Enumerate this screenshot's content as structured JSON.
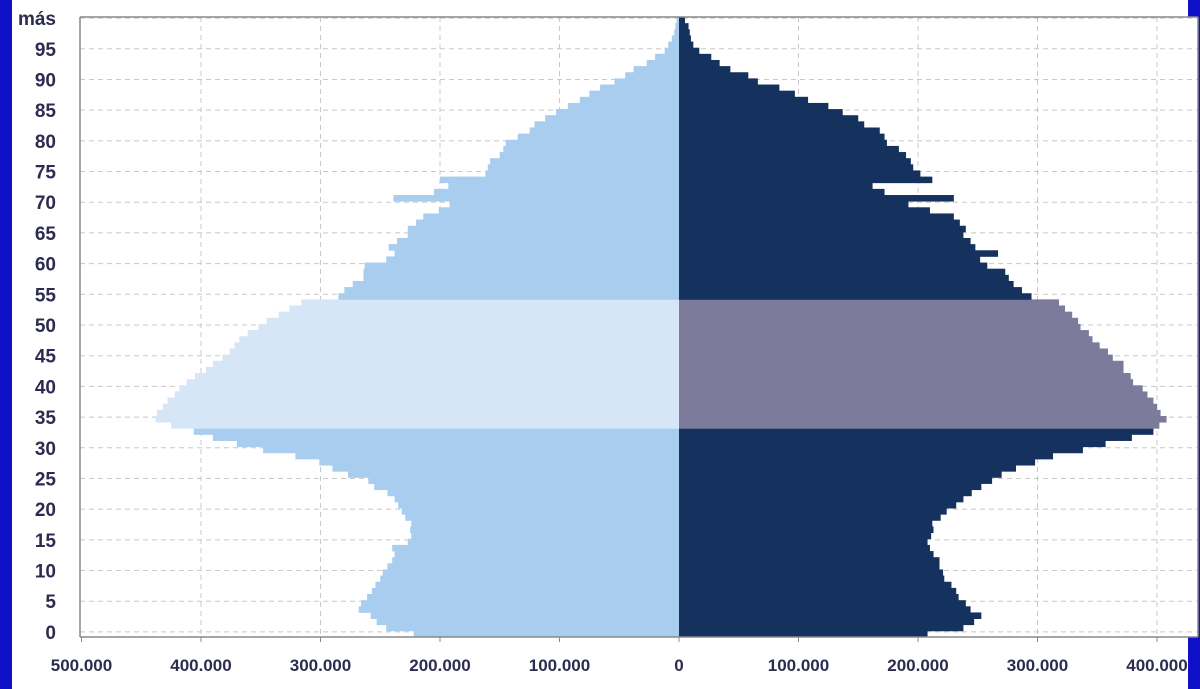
{
  "chart_data": {
    "type": "bar",
    "orientation": "horizontal",
    "title": "",
    "xlabel": "",
    "ylabel": "",
    "age_categories": [
      "0",
      "1",
      "2",
      "3",
      "4",
      "5",
      "6",
      "7",
      "8",
      "9",
      "10",
      "11",
      "12",
      "13",
      "14",
      "15",
      "16",
      "17",
      "18",
      "19",
      "20",
      "21",
      "22",
      "23",
      "24",
      "25",
      "26",
      "27",
      "28",
      "29",
      "30",
      "31",
      "32",
      "33",
      "34",
      "35",
      "36",
      "37",
      "38",
      "39",
      "40",
      "41",
      "42",
      "43",
      "44",
      "45",
      "46",
      "47",
      "48",
      "49",
      "50",
      "51",
      "52",
      "53",
      "54",
      "55",
      "56",
      "57",
      "58",
      "59",
      "60",
      "61",
      "62",
      "63",
      "64",
      "65",
      "66",
      "67",
      "68",
      "69",
      "70",
      "71",
      "72",
      "73",
      "74",
      "75",
      "76",
      "77",
      "78",
      "79",
      "80",
      "81",
      "82",
      "83",
      "84",
      "85",
      "86",
      "87",
      "88",
      "89",
      "90",
      "91",
      "92",
      "93",
      "94",
      "95",
      "96",
      "97",
      "98",
      "99",
      "100"
    ],
    "series": [
      {
        "side": "left",
        "values": [
          222000,
          245000,
          253000,
          258000,
          268000,
          266000,
          261000,
          257000,
          254000,
          250000,
          248000,
          244000,
          240000,
          238000,
          240000,
          227000,
          224000,
          225000,
          224000,
          229000,
          232000,
          235000,
          238000,
          244000,
          255000,
          260000,
          277000,
          290000,
          301000,
          321000,
          348000,
          370000,
          390000,
          406000,
          425000,
          438000,
          437000,
          432000,
          428000,
          422000,
          418000,
          412000,
          405000,
          396000,
          390000,
          382000,
          376000,
          372000,
          368000,
          361000,
          352000,
          345000,
          335000,
          326000,
          316000,
          285000,
          280000,
          273000,
          264000,
          264000,
          263000,
          245000,
          238000,
          243000,
          236000,
          227000,
          227000,
          220000,
          214000,
          201000,
          192000,
          239000,
          205000,
          193000,
          200000,
          162000,
          160000,
          158000,
          150000,
          147000,
          145000,
          135000,
          125000,
          121000,
          112000,
          103000,
          93000,
          83000,
          75000,
          66000,
          54000,
          45000,
          38000,
          27000,
          20000,
          12000,
          9000,
          6000,
          4000,
          3000,
          2000
        ],
        "shade_by_age": {
          "light": "#a8cdef",
          "lighter": "#d6e6f7"
        }
      },
      {
        "side": "right",
        "values": [
          208000,
          238000,
          247000,
          253000,
          244000,
          240000,
          234000,
          232000,
          228000,
          222000,
          221000,
          218000,
          218000,
          213000,
          210000,
          208000,
          211000,
          213000,
          212000,
          219000,
          224000,
          232000,
          238000,
          245000,
          253000,
          262000,
          270000,
          282000,
          298000,
          313000,
          338000,
          357000,
          379000,
          397000,
          402000,
          408000,
          403000,
          400000,
          397000,
          392000,
          388000,
          380000,
          378000,
          372000,
          372000,
          363000,
          359000,
          352000,
          346000,
          343000,
          336000,
          334000,
          329000,
          323000,
          318000,
          295000,
          287000,
          280000,
          276000,
          273000,
          258000,
          252000,
          267000,
          248000,
          244000,
          238000,
          240000,
          235000,
          230000,
          210000,
          192000,
          230000,
          172000,
          162000,
          212000,
          202000,
          196000,
          194000,
          190000,
          184000,
          174000,
          172000,
          168000,
          155000,
          150000,
          137000,
          125000,
          108000,
          97000,
          84000,
          66000,
          58000,
          43000,
          34000,
          27000,
          17000,
          12000,
          10000,
          9000,
          8000,
          5000
        ],
        "shade_by_age": {
          "dark": "#15325e",
          "mid": "#7d7b9c"
        }
      }
    ],
    "highlight_age_range": [
      34,
      54
    ],
    "x_ticks": [
      {
        "value": -500000,
        "label": "500.000"
      },
      {
        "value": -400000,
        "label": "400.000"
      },
      {
        "value": -300000,
        "label": "300.000"
      },
      {
        "value": -200000,
        "label": "200.000"
      },
      {
        "value": -100000,
        "label": "100.000"
      },
      {
        "value": 0,
        "label": "0"
      },
      {
        "value": 100000,
        "label": "100.000"
      },
      {
        "value": 200000,
        "label": "200.000"
      },
      {
        "value": 300000,
        "label": "300.000"
      },
      {
        "value": 400000,
        "label": "400.000"
      }
    ],
    "y_ticks": [
      {
        "value": 0,
        "label": "0"
      },
      {
        "value": 5,
        "label": "5"
      },
      {
        "value": 10,
        "label": "10"
      },
      {
        "value": 15,
        "label": "15"
      },
      {
        "value": 20,
        "label": "20"
      },
      {
        "value": 25,
        "label": "25"
      },
      {
        "value": 30,
        "label": "30"
      },
      {
        "value": 35,
        "label": "35"
      },
      {
        "value": 40,
        "label": "40"
      },
      {
        "value": 45,
        "label": "45"
      },
      {
        "value": 50,
        "label": "50"
      },
      {
        "value": 55,
        "label": "55"
      },
      {
        "value": 60,
        "label": "60"
      },
      {
        "value": 65,
        "label": "65"
      },
      {
        "value": 70,
        "label": "70"
      },
      {
        "value": 75,
        "label": "75"
      },
      {
        "value": 80,
        "label": "80"
      },
      {
        "value": 85,
        "label": "85"
      },
      {
        "value": 90,
        "label": "90"
      },
      {
        "value": 95,
        "label": "95"
      },
      {
        "value": 100,
        "label": "más"
      }
    ],
    "xlim": [
      -500000,
      410000
    ],
    "ylim": [
      0,
      100
    ],
    "grid": true,
    "grid_style": "dashed",
    "colors": {
      "frame_border": "#1010c8",
      "plot_background": "#ffffff",
      "grid": "#c8c8c8",
      "axis": "#888888",
      "tick_text": "#2c2c50"
    }
  }
}
